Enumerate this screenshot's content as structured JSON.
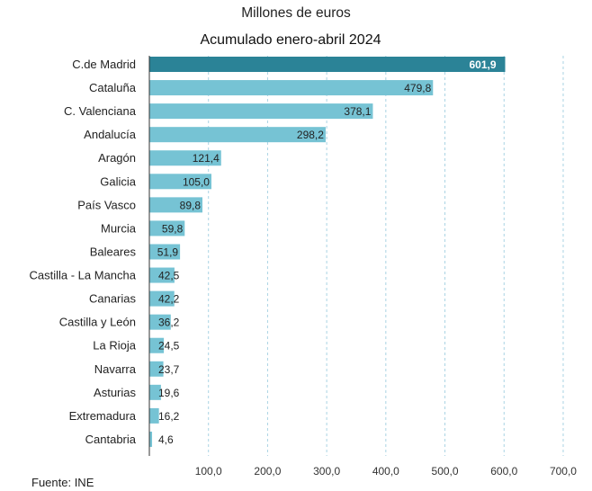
{
  "chart_data": {
    "type": "bar",
    "orientation": "horizontal",
    "title": "Millones de euros",
    "subtitle": "Acumulado enero-abril 2024",
    "categories": [
      "C.de Madrid",
      "Cataluña",
      "C. Valenciana",
      "Andalucía",
      "Aragón",
      "Galicia",
      "País Vasco",
      "Murcia",
      "Baleares",
      "Castilla - La Mancha",
      "Canarias",
      "Castilla y León",
      "La Rioja",
      "Navarra",
      "Asturias",
      "Extremadura",
      "Cantabria"
    ],
    "values": [
      601.9,
      479.8,
      378.1,
      298.2,
      121.4,
      105.0,
      89.8,
      59.8,
      51.9,
      42.5,
      42.2,
      36.2,
      24.5,
      23.7,
      19.6,
      16.2,
      4.6
    ],
    "value_labels": [
      "601,9",
      "479,8",
      "378,1",
      "298,2",
      "121,4",
      "105,0",
      "89,8",
      "59,8",
      "51,9",
      "42,5",
      "42,2",
      "36,2",
      "24,5",
      "23,7",
      "19,6",
      "16,2",
      "4,6"
    ],
    "x_ticks": [
      "100,0",
      "200,0",
      "300,0",
      "400,0",
      "500,0",
      "600,0",
      "700,0"
    ],
    "x_tick_values": [
      100,
      200,
      300,
      400,
      500,
      600,
      700
    ],
    "xlim": [
      0,
      700
    ],
    "xlabel": "",
    "ylabel": "",
    "grid": "vertical dashed",
    "highlight_index": 0,
    "colors": {
      "highlight": "#2b8397",
      "bar": "#76c3d4",
      "grid": "#a9d3e3",
      "axis": "#333333"
    },
    "source": "Fuente: INE"
  }
}
